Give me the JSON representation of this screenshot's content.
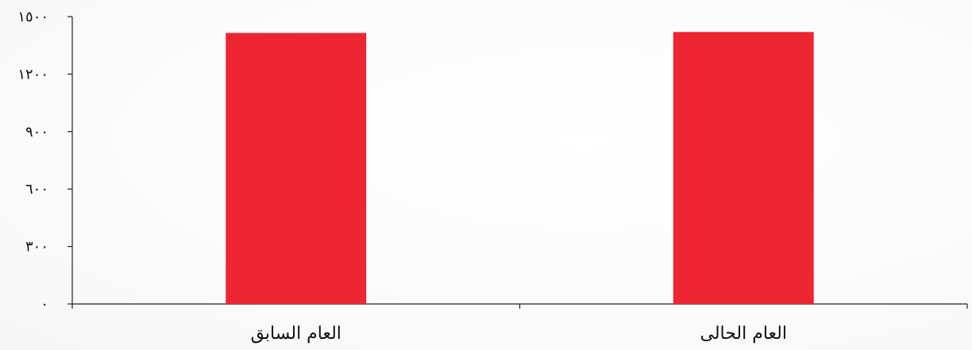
{
  "chart_data": {
    "type": "bar",
    "categories": [
      "العام السابق",
      "العام الحالى"
    ],
    "values": [
      1415,
      1420
    ],
    "yticks": [
      0,
      300,
      600,
      900,
      1200,
      1500
    ],
    "ytick_labels": [
      "٠",
      "٣٠٠",
      "٦٠٠",
      "٩٠٠",
      "١٢٠٠",
      "١٥٠٠"
    ],
    "ylim": [
      0,
      1500
    ],
    "title": "",
    "xlabel": "",
    "ylabel": "",
    "grid": false,
    "bar_color": "#ed2533"
  }
}
